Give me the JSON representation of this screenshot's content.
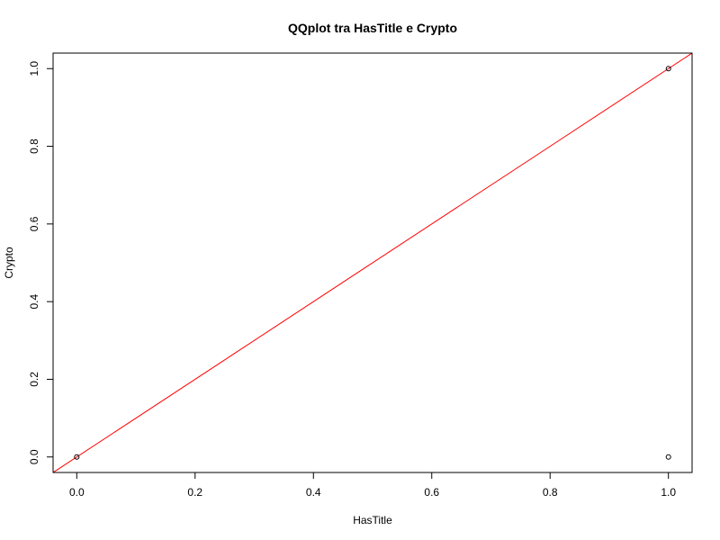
{
  "chart_data": {
    "type": "scatter",
    "title": "QQplot tra HasTitle e Crypto",
    "xlabel": "HasTitle",
    "ylabel": "Crypto",
    "xlim": [
      -0.04,
      1.04
    ],
    "ylim": [
      -0.04,
      1.04
    ],
    "xticks": [
      0.0,
      0.2,
      0.4,
      0.6,
      0.8,
      1.0
    ],
    "xtick_labels": [
      "0.0",
      "0.2",
      "0.4",
      "0.6",
      "0.8",
      "1.0"
    ],
    "yticks": [
      0.0,
      0.2,
      0.4,
      0.6,
      0.8,
      1.0
    ],
    "ytick_labels": [
      "0.0",
      "0.2",
      "0.4",
      "0.6",
      "0.8",
      "1.0"
    ],
    "grid": false,
    "points": [
      {
        "x": 0,
        "y": 0
      },
      {
        "x": 1,
        "y": 1
      },
      {
        "x": 1,
        "y": 0
      }
    ],
    "reference_line": {
      "intercept": 0,
      "slope": 1,
      "color": "#ff0000"
    },
    "point_color": "#000000"
  }
}
